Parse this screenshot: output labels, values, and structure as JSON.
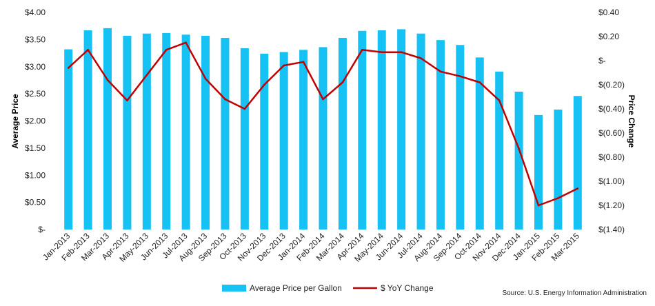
{
  "chart_data": {
    "type": "bar",
    "categories": [
      "Jan-2013",
      "Feb-2013",
      "Mar-2013",
      "Apr-2013",
      "May-2013",
      "Jun-2013",
      "Jul-2013",
      "Aug-2013",
      "Sep-2013",
      "Oct-2013",
      "Nov-2013",
      "Dec-2013",
      "Jan-2014",
      "Feb-2014",
      "Mar-2014",
      "Apr-2014",
      "May-2014",
      "Jun-2014",
      "Jul-2014",
      "Aug-2014",
      "Sep-2014",
      "Oct-2014",
      "Nov-2014",
      "Dec-2014",
      "Jan-2015",
      "Feb-2015",
      "Mar-2015"
    ],
    "series": [
      {
        "name": "Average Price per Gallon",
        "type": "bar",
        "axis": "left",
        "color": "#16c1f3",
        "values": [
          3.32,
          3.67,
          3.71,
          3.57,
          3.61,
          3.62,
          3.59,
          3.57,
          3.53,
          3.34,
          3.24,
          3.27,
          3.31,
          3.36,
          3.53,
          3.66,
          3.67,
          3.69,
          3.61,
          3.49,
          3.4,
          3.17,
          2.91,
          2.54,
          2.11,
          2.21,
          2.46
        ]
      },
      {
        "name": "$ YoY Change",
        "type": "line",
        "axis": "right",
        "color": "#c00000",
        "values": [
          -0.06,
          0.09,
          -0.16,
          -0.33,
          -0.12,
          0.09,
          0.15,
          -0.15,
          -0.32,
          -0.4,
          -0.2,
          -0.04,
          -0.01,
          -0.32,
          -0.18,
          0.09,
          0.07,
          0.07,
          0.02,
          -0.09,
          -0.13,
          -0.18,
          -0.33,
          -0.73,
          -1.2,
          -1.14,
          -1.06
        ]
      }
    ],
    "y_left": {
      "label": "Average Price",
      "ylim": [
        0,
        4
      ],
      "ticks": [
        0,
        0.5,
        1,
        1.5,
        2,
        2.5,
        3,
        3.5,
        4
      ],
      "tick_labels": [
        "$-",
        "$0.50",
        "$1.00",
        "$1.50",
        "$2.00",
        "$2.50",
        "$3.00",
        "$3.50",
        "$4.00"
      ]
    },
    "y_right": {
      "label": "Price Change",
      "ylim": [
        -1.4,
        0.4
      ],
      "ticks": [
        0.4,
        0.2,
        0,
        -0.2,
        -0.4,
        -0.6,
        -0.8,
        -1.0,
        -1.2,
        -1.4
      ],
      "tick_labels": [
        "$0.40",
        "$0.20",
        "$-",
        "$(0.20)",
        "$(0.40)",
        "$(0.60)",
        "$(0.80)",
        "$(1.00)",
        "$(1.20)",
        "$(1.40)"
      ]
    },
    "grid": false,
    "legend_position": "bottom",
    "source": "Source: U.S. Energy Information Administration"
  }
}
